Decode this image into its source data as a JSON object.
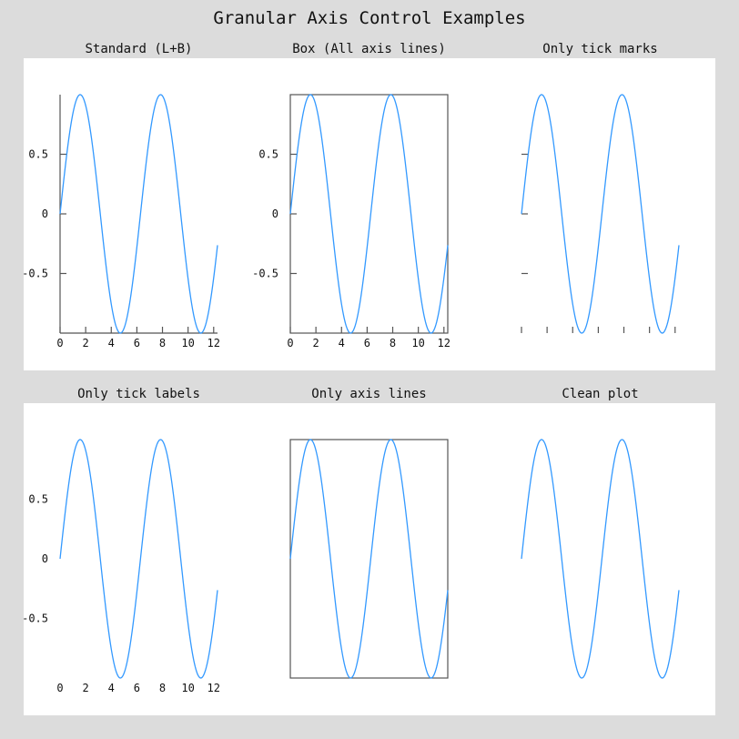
{
  "figure": {
    "title": "Granular Axis Control Examples",
    "background": "#dcdcdc",
    "panel_background": "#ffffff",
    "line_color": "#3399ff",
    "axis_color": "#555555"
  },
  "chart_data": [
    {
      "type": "line",
      "title": "Standard (L+B)",
      "function": "sin(x)",
      "x_range": [
        0,
        12.3
      ],
      "ylim": [
        -1,
        1
      ],
      "xticks": [
        "0",
        "2",
        "4",
        "6",
        "8",
        "10",
        "12"
      ],
      "yticks": [
        "0.5",
        "0",
        "-0.5"
      ],
      "axis_lines": "left-bottom",
      "tick_marks": true,
      "tick_labels": true
    },
    {
      "type": "line",
      "title": "Box (All axis lines)",
      "function": "sin(x)",
      "x_range": [
        0,
        12.3
      ],
      "ylim": [
        -1,
        1
      ],
      "xticks": [
        "0",
        "2",
        "4",
        "6",
        "8",
        "10",
        "12"
      ],
      "yticks": [
        "0.5",
        "0",
        "-0.5"
      ],
      "axis_lines": "box",
      "tick_marks": true,
      "tick_labels": true
    },
    {
      "type": "line",
      "title": "Only tick marks",
      "function": "sin(x)",
      "x_range": [
        0,
        12.3
      ],
      "ylim": [
        -1,
        1
      ],
      "xticks": [
        "0",
        "2",
        "4",
        "6",
        "8",
        "10",
        "12"
      ],
      "yticks": [
        "0.5",
        "0",
        "-0.5"
      ],
      "axis_lines": "none",
      "tick_marks": true,
      "tick_labels": false
    },
    {
      "type": "line",
      "title": "Only tick labels",
      "function": "sin(x)",
      "x_range": [
        0,
        12.3
      ],
      "ylim": [
        -1,
        1
      ],
      "xticks": [
        "0",
        "2",
        "4",
        "6",
        "8",
        "10",
        "12"
      ],
      "yticks": [
        "0.5",
        "0",
        "-0.5"
      ],
      "axis_lines": "none",
      "tick_marks": false,
      "tick_labels": true
    },
    {
      "type": "line",
      "title": "Only axis lines",
      "function": "sin(x)",
      "x_range": [
        0,
        12.3
      ],
      "ylim": [
        -1,
        1
      ],
      "xticks": [],
      "yticks": [],
      "axis_lines": "box",
      "tick_marks": false,
      "tick_labels": false
    },
    {
      "type": "line",
      "title": "Clean plot",
      "function": "sin(x)",
      "x_range": [
        0,
        12.3
      ],
      "ylim": [
        -1,
        1
      ],
      "xticks": [],
      "yticks": [],
      "axis_lines": "none",
      "tick_marks": false,
      "tick_labels": false
    }
  ]
}
